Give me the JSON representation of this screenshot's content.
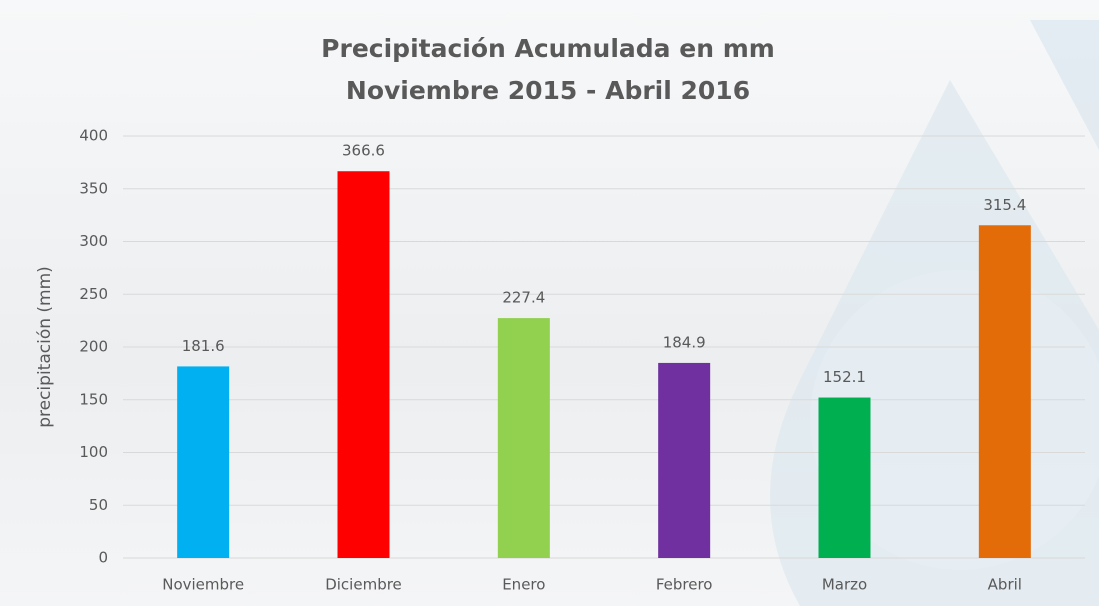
{
  "chart_data": {
    "type": "bar",
    "title": "Precipitación Acumulada en mm",
    "subtitle": "Noviembre 2015 - Abril 2016",
    "ylabel": "precipitación (mm)",
    "categories": [
      "Noviembre",
      "Diciembre",
      "Enero",
      "Febrero",
      "Marzo",
      "Abril"
    ],
    "values": [
      181.6,
      366.6,
      227.4,
      184.9,
      152.1,
      315.4
    ],
    "colors": [
      "#00b0f0",
      "#ff0000",
      "#92d050",
      "#7030a0",
      "#00b050",
      "#e36c09"
    ],
    "ylim": [
      0,
      400
    ],
    "yticks": [
      0,
      50,
      100,
      150,
      200,
      250,
      300,
      350,
      400
    ],
    "grid": true
  }
}
